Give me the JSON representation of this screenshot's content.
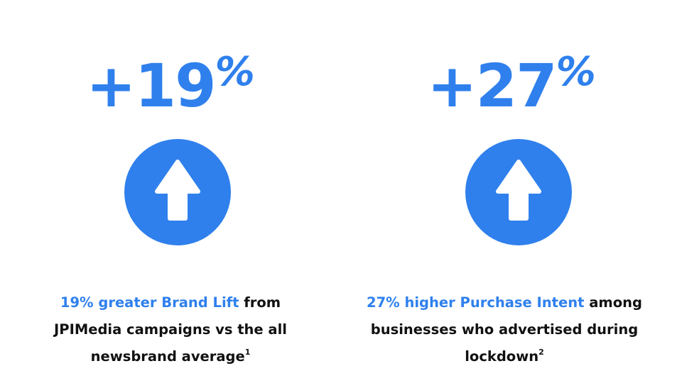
{
  "colors": {
    "accent": "#2f80ed",
    "text": "#111111",
    "background": "#ffffff",
    "arrow": "#ffffff"
  },
  "stats": [
    {
      "sign_value": "+19",
      "percent_sign": "%",
      "icon": "arrow-up-icon",
      "caption": {
        "highlight": "19% greater Brand Lift",
        "text": " from JPIMedia campaigns vs the all newsbrand average",
        "footnote": "1"
      }
    },
    {
      "sign_value": "+27",
      "percent_sign": "%",
      "icon": "arrow-up-icon",
      "caption": {
        "highlight": "27% higher Purchase Intent",
        "text": " among businesses who advertised during lockdown",
        "footnote": "2"
      }
    }
  ]
}
